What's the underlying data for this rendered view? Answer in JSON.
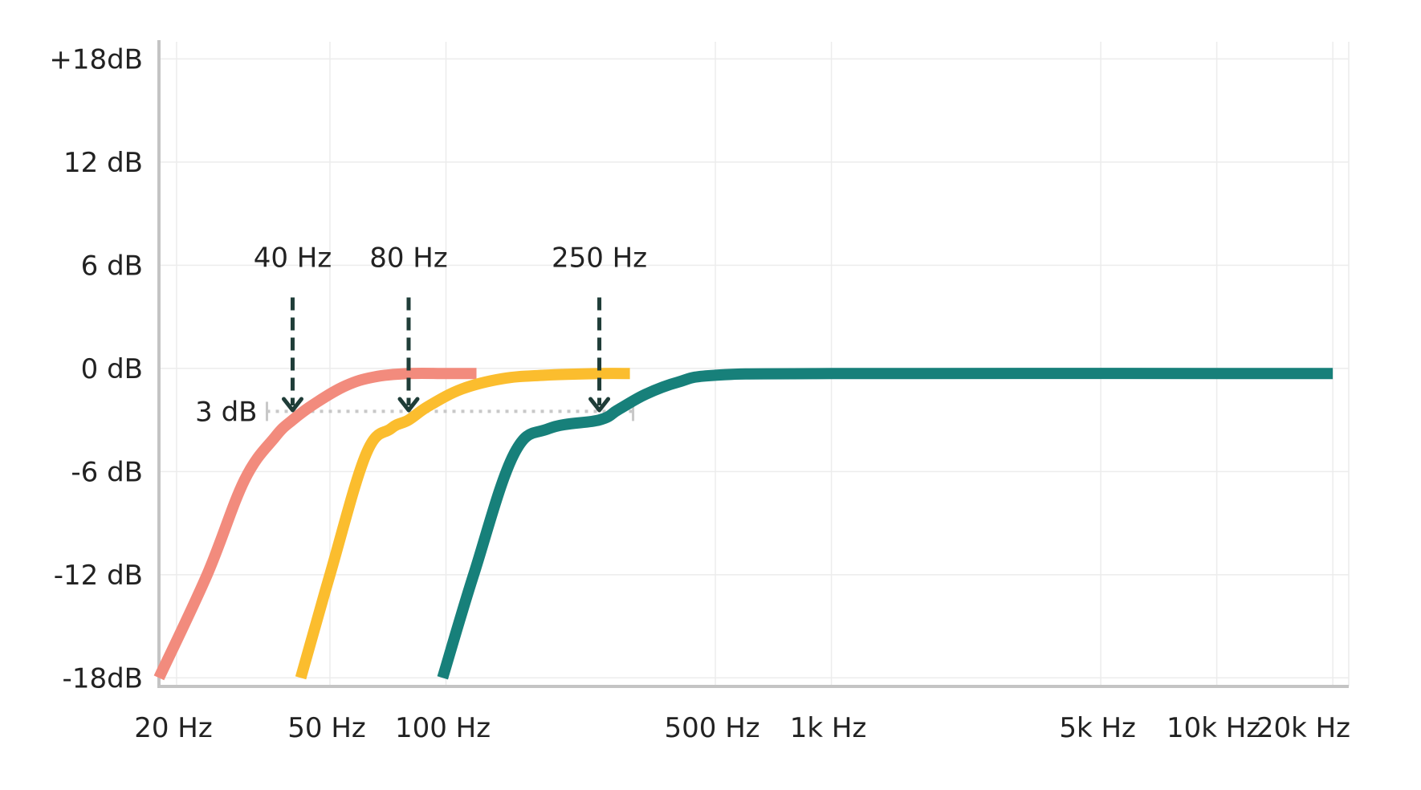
{
  "chart_data": {
    "type": "line",
    "title": "",
    "xlabel": "",
    "ylabel": "",
    "x_scale": "log",
    "xlim": [
      18,
      22000
    ],
    "ylim": [
      -18.5,
      19
    ],
    "grid": true,
    "x_ticks": [
      {
        "value": 20,
        "label": "20 Hz"
      },
      {
        "value": 50,
        "label": "50 Hz"
      },
      {
        "value": 100,
        "label": "100 Hz"
      },
      {
        "value": 500,
        "label": "500 Hz"
      },
      {
        "value": 1000,
        "label": "1k Hz"
      },
      {
        "value": 5000,
        "label": "5k Hz"
      },
      {
        "value": 10000,
        "label": "10k Hz"
      },
      {
        "value": 20000,
        "label": "20k Hz"
      }
    ],
    "y_ticks": [
      {
        "value": 18,
        "label": "+18dB"
      },
      {
        "value": 12,
        "label": "12 dB"
      },
      {
        "value": 6,
        "label": "6 dB"
      },
      {
        "value": 0,
        "label": "0 dB"
      },
      {
        "value": -6,
        "label": "-6 dB"
      },
      {
        "value": -12,
        "label": "-12 dB"
      },
      {
        "value": -18,
        "label": "-18dB"
      }
    ],
    "series": [
      {
        "color": "#f28b7d",
        "x": [
          18,
          24,
          30,
          36,
          40,
          46,
          55,
          65,
          80,
          100,
          120
        ],
        "y": [
          -18,
          -12,
          -6.5,
          -4,
          -3,
          -2,
          -1,
          -0.5,
          -0.3,
          -0.3,
          -0.3
        ]
      },
      {
        "color": "#fbbd2e",
        "x": [
          42,
          50,
          62,
          72,
          80,
          90,
          110,
          140,
          180,
          250,
          300
        ],
        "y": [
          -18,
          -12,
          -5,
          -3.5,
          -3,
          -2.2,
          -1.2,
          -0.6,
          -0.4,
          -0.3,
          -0.3
        ]
      },
      {
        "color": "#17807a",
        "x": [
          98,
          118,
          150,
          185,
          250,
          280,
          330,
          400,
          500,
          1000,
          20000
        ],
        "y": [
          -18,
          -12,
          -5,
          -3.5,
          -3,
          -2.4,
          -1.5,
          -0.8,
          -0.4,
          -0.3,
          -0.3
        ]
      }
    ],
    "annotations": [
      {
        "label": "40 Hz",
        "x": 40,
        "y_from": 4.5,
        "y_to": -1.5
      },
      {
        "label": "80 Hz",
        "x": 80,
        "y_from": 4.5,
        "y_to": -1.5
      },
      {
        "label": "250 Hz",
        "x": 250,
        "y_from": 4.5,
        "y_to": -1.5
      }
    ],
    "reference_line": {
      "label": "3 dB",
      "y": -2.5,
      "x_from": 36,
      "x_to": 300
    }
  }
}
